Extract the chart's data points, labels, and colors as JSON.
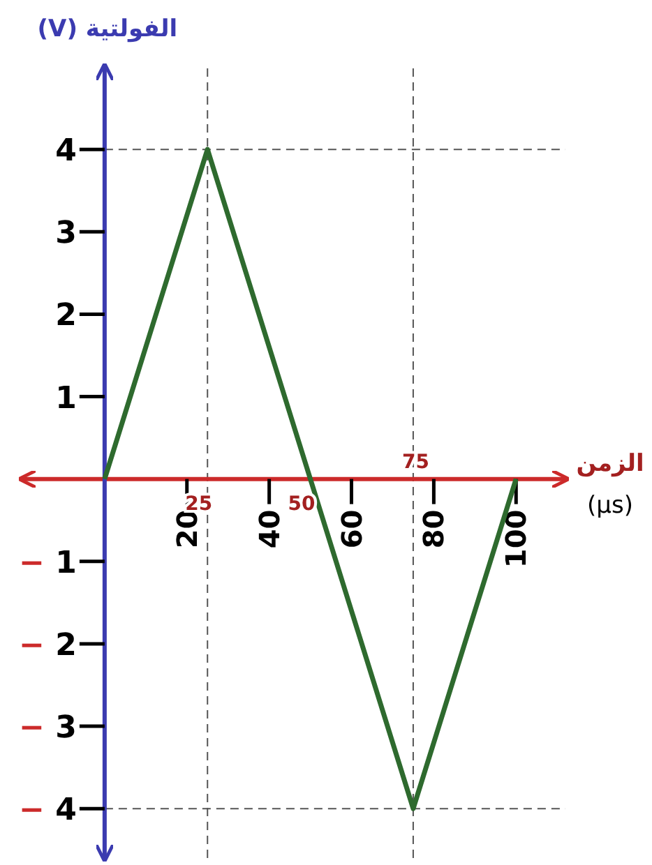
{
  "chart_data": {
    "type": "line",
    "ylabel": "الفولتية (V)",
    "xlabel": "الزمن (µs)",
    "x": [
      0,
      25,
      75,
      100
    ],
    "series": [
      {
        "color": "#2e6a2e",
        "values": [
          0,
          4,
          -4,
          0
        ]
      }
    ],
    "xlim": [
      -20,
      112
    ],
    "ylim": [
      -4.6,
      5
    ],
    "xticks": [
      20,
      40,
      60,
      80,
      100
    ],
    "yticks": [
      4,
      3,
      2,
      1,
      {
        "value": -1,
        "label": "− 1"
      },
      {
        "value": -2,
        "label": "− 2"
      },
      {
        "value": -3,
        "label": "− 3"
      },
      {
        "value": -4,
        "label": "− 4"
      }
    ],
    "ref_lines": [
      {
        "axis": "y",
        "value": 4,
        "color": "#555555",
        "line_style": "dashed"
      },
      {
        "axis": "y",
        "value": -4,
        "color": "#555555",
        "line_style": "dashed"
      },
      {
        "axis": "x",
        "value": 25,
        "color": "#555555",
        "line_style": "dashed"
      },
      {
        "axis": "x",
        "value": 75,
        "color": "#555555",
        "line_style": "dashed"
      }
    ],
    "annotations": [
      {
        "text": "25",
        "x": 25,
        "y": 0
      },
      {
        "text": "50",
        "x": 50,
        "y": 0
      },
      {
        "text": "75",
        "x": 75,
        "y": 0
      }
    ],
    "grid": false,
    "marker": "none",
    "line_style": "solid"
  }
}
